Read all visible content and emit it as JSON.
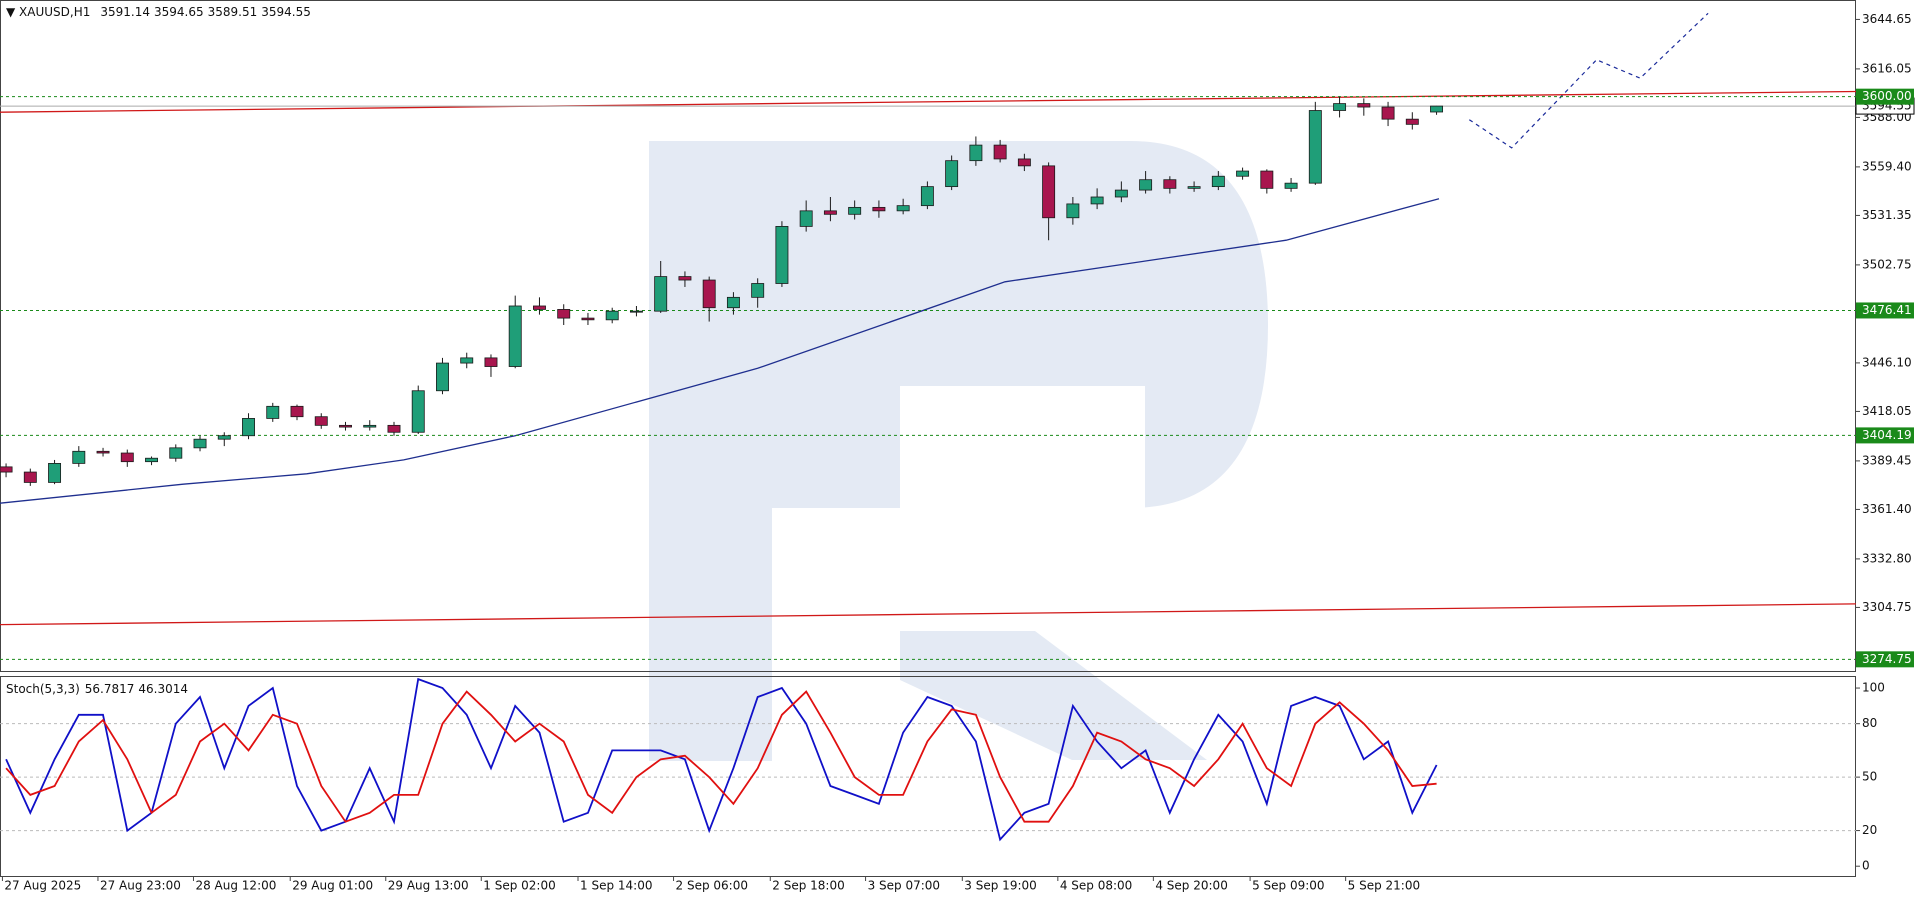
{
  "chart_data": [
    {
      "type": "candlestick",
      "symbol": "XAUUSD,H1",
      "candles": [
        [
          3386,
          3388,
          3380,
          3383
        ],
        [
          3383,
          3385,
          3375,
          3377
        ],
        [
          3377,
          3390,
          3376,
          3388
        ],
        [
          3388,
          3398,
          3386,
          3395
        ],
        [
          3395,
          3397,
          3392,
          3394
        ],
        [
          3394,
          3396,
          3386,
          3389
        ],
        [
          3389,
          3392,
          3387,
          3391
        ],
        [
          3391,
          3399,
          3389,
          3397
        ],
        [
          3397,
          3404,
          3395,
          3402
        ],
        [
          3402,
          3406,
          3398,
          3404
        ],
        [
          3404,
          3417,
          3402,
          3414
        ],
        [
          3414,
          3423,
          3412,
          3421
        ],
        [
          3421,
          3422,
          3413,
          3415
        ],
        [
          3415,
          3417,
          3408,
          3410
        ],
        [
          3410,
          3412,
          3407,
          3409
        ],
        [
          3409,
          3413,
          3407,
          3410
        ],
        [
          3410,
          3412,
          3404,
          3406
        ],
        [
          3406,
          3433,
          3405,
          3430
        ],
        [
          3430,
          3449,
          3428,
          3446
        ],
        [
          3446,
          3452,
          3443,
          3449
        ],
        [
          3449,
          3451,
          3438,
          3444
        ],
        [
          3444,
          3485,
          3443,
          3479
        ],
        [
          3479,
          3484,
          3474,
          3477
        ],
        [
          3477,
          3480,
          3468,
          3472
        ],
        [
          3472,
          3475,
          3468,
          3471
        ],
        [
          3471,
          3478,
          3469,
          3476
        ],
        [
          3476,
          3479,
          3473,
          3476
        ],
        [
          3476,
          3505,
          3475,
          3496
        ],
        [
          3496,
          3499,
          3490,
          3494
        ],
        [
          3494,
          3496,
          3470,
          3478
        ],
        [
          3478,
          3487,
          3474,
          3484
        ],
        [
          3484,
          3495,
          3478,
          3492
        ],
        [
          3492,
          3528,
          3490,
          3525
        ],
        [
          3525,
          3540,
          3522,
          3534
        ],
        [
          3534,
          3542,
          3528,
          3532
        ],
        [
          3532,
          3540,
          3529,
          3536
        ],
        [
          3536,
          3540,
          3530,
          3534
        ],
        [
          3534,
          3541,
          3532,
          3537
        ],
        [
          3537,
          3551,
          3535,
          3548
        ],
        [
          3548,
          3566,
          3546,
          3563
        ],
        [
          3563,
          3577,
          3560,
          3572
        ],
        [
          3572,
          3575,
          3562,
          3564
        ],
        [
          3564,
          3567,
          3557,
          3560
        ],
        [
          3560,
          3562,
          3517,
          3530
        ],
        [
          3530,
          3542,
          3526,
          3538
        ],
        [
          3538,
          3547,
          3535,
          3542
        ],
        [
          3542,
          3551,
          3539,
          3546
        ],
        [
          3546,
          3557,
          3544,
          3552
        ],
        [
          3552,
          3554,
          3544,
          3547
        ],
        [
          3547,
          3551,
          3545,
          3548
        ],
        [
          3548,
          3557,
          3546,
          3554
        ],
        [
          3554,
          3559,
          3552,
          3557
        ],
        [
          3557,
          3558,
          3544,
          3547
        ],
        [
          3547,
          3553,
          3545,
          3550
        ],
        [
          3550,
          3597,
          3549,
          3592
        ],
        [
          3592,
          3600,
          3588,
          3596
        ],
        [
          3596,
          3599,
          3589,
          3594
        ],
        [
          3594,
          3597,
          3583,
          3587
        ],
        [
          3587,
          3591,
          3581,
          3584
        ],
        [
          3591.14,
          3594.65,
          3589.51,
          3594.55
        ]
      ],
      "up_color": "#1f9e78",
      "down_color": "#a8164e",
      "xlim": [
        -0.25,
        76.3
      ],
      "ylim": [
        3268,
        3655.3
      ],
      "yticks": [
        3644.65,
        3616.05,
        {
          "value": 3588,
          "label": "3588.00"
        },
        {
          "value": 3559.4,
          "label": "3559.40"
        },
        3531.35,
        3502.75,
        {
          "value": 3446.1,
          "label": "3446.10"
        },
        3418.05,
        3389.45,
        {
          "value": 3361.4,
          "label": "3361.40"
        },
        {
          "value": 3332.8,
          "label": "3332.80"
        },
        3304.75
      ],
      "xticks": [
        {
          "value": -0.15,
          "label": "27 Aug 2025"
        },
        {
          "value": 3.79,
          "label": "27 Aug 23:00"
        },
        {
          "value": 7.73,
          "label": "28 Aug 12:00"
        },
        {
          "value": 11.72,
          "label": "29 Aug 01:00"
        },
        {
          "value": 15.66,
          "label": "29 Aug 13:00"
        },
        {
          "value": 19.6,
          "label": "1 Sep 02:00"
        },
        {
          "value": 23.59,
          "label": "1 Sep 14:00"
        },
        {
          "value": 27.53,
          "label": "2 Sep 06:00"
        },
        {
          "value": 31.52,
          "label": "2 Sep 18:00"
        },
        {
          "value": 35.45,
          "label": "3 Sep 07:00"
        },
        {
          "value": 39.44,
          "label": "3 Sep 19:00"
        },
        {
          "value": 43.38,
          "label": "4 Sep 08:00"
        },
        {
          "value": 47.32,
          "label": "4 Sep 20:00"
        },
        {
          "value": 51.31,
          "label": "5 Sep 09:00"
        },
        {
          "value": 55.25,
          "label": "5 Sep 21:00"
        }
      ],
      "moving_average": {
        "color": "#1f2f8f",
        "x": [
          -0.25,
          7.3,
          12.4,
          16.4,
          21,
          31,
          41.2,
          52.8,
          59.1
        ],
        "values": [
          3365,
          3376,
          3382,
          3390,
          3404,
          3443,
          3493,
          3517,
          3541
        ]
      },
      "trend_lines": [
        {
          "color": "#d01818",
          "x": [
            -0.25,
            76.3
          ],
          "values": [
            3591,
            3603
          ]
        },
        {
          "color": "#d01818",
          "x": [
            -0.25,
            76.3
          ],
          "values": [
            3294.8,
            3306.8
          ]
        }
      ],
      "forecast": {
        "color": "#1a2a9a",
        "x": [
          60.35,
          62.1,
          65.6,
          67.4,
          70.2
        ],
        "values": [
          3586.7,
          3570.4,
          3621.3,
          3610.7,
          3648.2
        ]
      },
      "levels": [
        3600,
        3476.41,
        3404.19,
        3274.75
      ],
      "level_labels": [
        "3600.00",
        "3476.41",
        "3404.19",
        "3274.75"
      ],
      "level_color": "#1a8a1a"
    },
    {
      "type": "line",
      "title": "Stoch(5,3,3)",
      "series": [
        {
          "color": "#1010c8",
          "values": [
            60,
            30,
            60,
            85,
            85,
            20,
            30,
            80,
            95,
            55,
            90,
            100,
            45,
            20,
            25,
            55,
            25,
            105,
            100,
            85,
            55,
            90,
            75,
            25,
            30,
            65,
            65,
            65,
            60,
            20,
            55,
            95,
            100,
            80,
            45,
            40,
            35,
            75,
            95,
            90,
            70,
            15,
            30,
            35,
            90,
            70,
            55,
            65,
            30,
            60,
            85,
            70,
            35,
            90,
            95,
            90,
            60,
            70,
            30,
            56.7817
          ]
        },
        {
          "color": "#e01010",
          "values": [
            55,
            40,
            45,
            70,
            82,
            60,
            30,
            40,
            70,
            80,
            65,
            85,
            80,
            45,
            25,
            30,
            40,
            40,
            80,
            98,
            85,
            70,
            80,
            70,
            40,
            30,
            50,
            60,
            62,
            50,
            35,
            55,
            85,
            98,
            75,
            50,
            40,
            40,
            70,
            88,
            85,
            50,
            25,
            25,
            45,
            75,
            70,
            60,
            55,
            45,
            60,
            80,
            55,
            45,
            80,
            92,
            80,
            65,
            45,
            46.3014
          ]
        }
      ],
      "xlim": [
        -0.25,
        76.3
      ],
      "ylim": [
        -5.5,
        106.2
      ],
      "yticks": [
        0,
        20,
        50,
        80,
        100
      ]
    }
  ]
}
